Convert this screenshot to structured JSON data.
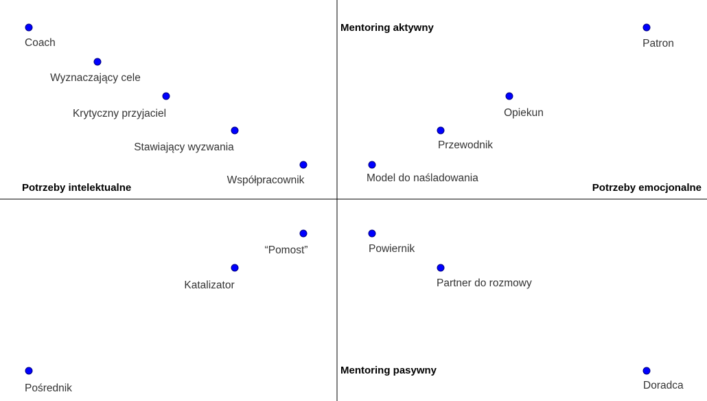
{
  "diagram": {
    "axes": {
      "top": "Mentoring aktywny",
      "bottom": "Mentoring pasywny",
      "left": "Potrzeby intelektualne",
      "right": "Potrzeby emocjonalne"
    },
    "point_color": "#0000ff",
    "point_stroke": "#000080",
    "points": [
      {
        "id": "coach",
        "label": "Coach"
      },
      {
        "id": "wyznaczajacy-cele",
        "label": "Wyznaczający cele"
      },
      {
        "id": "krytyczny-przyjaciel",
        "label": "Krytyczny przyjaciel"
      },
      {
        "id": "stawiajacy-wyzwania",
        "label": "Stawiający wyzwania"
      },
      {
        "id": "wspolpracownik",
        "label": "Współpracownik"
      },
      {
        "id": "patron",
        "label": "Patron"
      },
      {
        "id": "opiekun",
        "label": "Opiekun"
      },
      {
        "id": "przewodnik",
        "label": "Przewodnik"
      },
      {
        "id": "model-do-nasladowania",
        "label": "Model do naśladowania"
      },
      {
        "id": "pomost",
        "label": "“Pomost”"
      },
      {
        "id": "katalizator",
        "label": "Katalizator"
      },
      {
        "id": "posrednik",
        "label": "Pośrednik"
      },
      {
        "id": "powiernik",
        "label": "Powiernik"
      },
      {
        "id": "partner-do-rozmowy",
        "label": "Partner do rozmowy"
      },
      {
        "id": "doradca",
        "label": "Doradca"
      }
    ]
  }
}
